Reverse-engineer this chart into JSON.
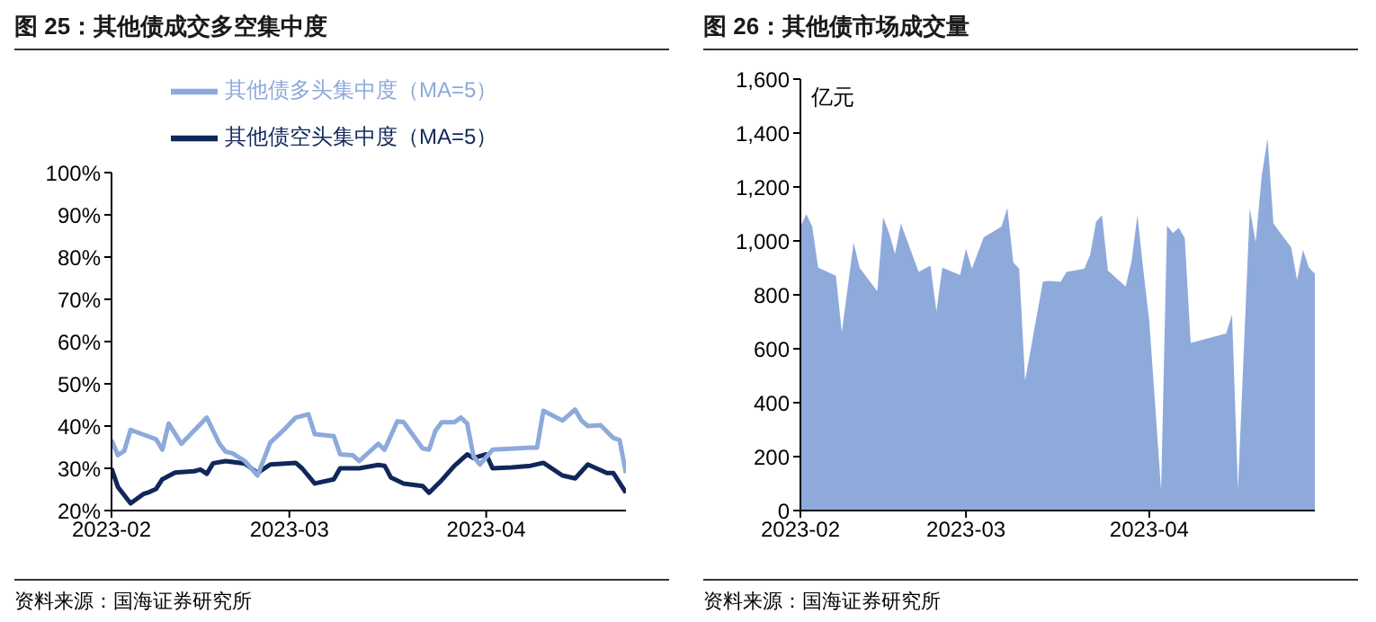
{
  "chart_data": [
    {
      "type": "line",
      "title": "图 25：其他债成交多空集中度",
      "annotations": [
        "资料来源：国海证券研究所"
      ],
      "legend": "top",
      "grid": false,
      "xlim": [
        "2023-02-01",
        "2023-04-23"
      ],
      "xticks": [
        "2023-02",
        "2023-03",
        "2023-04"
      ],
      "ylim": [
        20,
        100
      ],
      "yticks": [
        {
          "value": 20,
          "label": "20%"
        },
        {
          "value": 30,
          "label": "30%"
        },
        {
          "value": 40,
          "label": "40%"
        },
        {
          "value": 50,
          "label": "50%"
        },
        {
          "value": 60,
          "label": "60%"
        },
        {
          "value": 70,
          "label": "70%"
        },
        {
          "value": 80,
          "label": "80%"
        },
        {
          "value": 90,
          "label": "90%"
        },
        {
          "value": 100,
          "label": "100%"
        }
      ],
      "series": [
        {
          "name": "其他债空头集中度（MA=5）",
          "color": "#10275b",
          "x": [
            "2023-02-01",
            "2023-02-02",
            "2023-02-04",
            "2023-02-06",
            "2023-02-07",
            "2023-02-08",
            "2023-02-09",
            "2023-02-11",
            "2023-02-14",
            "2023-02-15",
            "2023-02-16",
            "2023-02-17",
            "2023-02-19",
            "2023-02-22",
            "2023-02-24",
            "2023-02-26",
            "2023-03-02",
            "2023-03-03",
            "2023-03-05",
            "2023-03-08",
            "2023-03-09",
            "2023-03-12",
            "2023-03-15",
            "2023-03-16",
            "2023-03-17",
            "2023-03-19",
            "2023-03-22",
            "2023-03-23",
            "2023-03-25",
            "2023-03-27",
            "2023-03-29",
            "2023-03-30",
            "2023-04-01",
            "2023-04-02",
            "2023-04-05",
            "2023-04-08",
            "2023-04-10",
            "2023-04-13",
            "2023-04-15",
            "2023-04-17",
            "2023-04-20",
            "2023-04-21",
            "2023-04-23"
          ],
          "values": [
            30.0,
            25.6,
            21.7,
            23.9,
            24.4,
            25.1,
            27.4,
            29.0,
            29.3,
            29.7,
            28.7,
            31.2,
            31.7,
            31.1,
            28.9,
            30.9,
            31.3,
            30.0,
            26.4,
            27.4,
            30.0,
            30.0,
            30.8,
            30.6,
            27.8,
            26.4,
            25.8,
            24.2,
            27.2,
            30.6,
            33.3,
            32.4,
            33.3,
            30.0,
            30.2,
            30.6,
            31.3,
            28.3,
            27.6,
            30.9,
            28.9,
            28.9,
            24.2
          ]
        },
        {
          "name": "其他债多头集中度（MA=5）",
          "color": "#8ea9db",
          "x": [
            "2023-02-01",
            "2023-02-02",
            "2023-02-03",
            "2023-02-04",
            "2023-02-08",
            "2023-02-09",
            "2023-02-10",
            "2023-02-12",
            "2023-02-16",
            "2023-02-18",
            "2023-02-19",
            "2023-02-20",
            "2023-02-22",
            "2023-02-24",
            "2023-02-26",
            "2023-02-28",
            "2023-03-02",
            "2023-03-04",
            "2023-03-05",
            "2023-03-08",
            "2023-03-09",
            "2023-03-11",
            "2023-03-12",
            "2023-03-15",
            "2023-03-16",
            "2023-03-18",
            "2023-03-19",
            "2023-03-22",
            "2023-03-23",
            "2023-03-24",
            "2023-03-25",
            "2023-03-27",
            "2023-03-28",
            "2023-03-29",
            "2023-03-30",
            "2023-03-31",
            "2023-04-02",
            "2023-04-08",
            "2023-04-09",
            "2023-04-10",
            "2023-04-13",
            "2023-04-15",
            "2023-04-16",
            "2023-04-17",
            "2023-04-19",
            "2023-04-21",
            "2023-04-22",
            "2023-04-23"
          ],
          "values": [
            36.7,
            33.1,
            34.1,
            39.1,
            36.9,
            34.4,
            40.6,
            35.8,
            42.0,
            35.8,
            33.9,
            33.6,
            31.7,
            28.3,
            36.1,
            38.9,
            42.0,
            42.8,
            38.1,
            37.6,
            33.3,
            33.1,
            31.7,
            35.8,
            34.4,
            41.1,
            40.9,
            34.7,
            34.4,
            38.9,
            40.9,
            40.9,
            42.0,
            40.6,
            32.8,
            30.9,
            34.4,
            34.9,
            34.9,
            43.6,
            41.3,
            43.9,
            41.3,
            40.0,
            40.2,
            37.2,
            36.7,
            28.9
          ]
        }
      ]
    },
    {
      "type": "area",
      "title": "图 26：其他债市场成交量",
      "annotations": [
        "资料来源：国海证券研究所"
      ],
      "ylabel": "亿元",
      "grid": false,
      "xlim": [
        "2023-02-01",
        "2023-04-29"
      ],
      "xticks": [
        "2023-02",
        "2023-03",
        "2023-04"
      ],
      "ylim": [
        0,
        1600
      ],
      "yticks": [
        0,
        200,
        400,
        600,
        800,
        {
          "value": 1000,
          "label": "1,000"
        },
        {
          "value": 1200,
          "label": "1,200"
        },
        {
          "value": 1400,
          "label": "1,400"
        },
        {
          "value": 1600,
          "label": "1,600"
        }
      ],
      "series": [
        {
          "color": "#8eaadb",
          "x": [
            "2023-02-01",
            "2023-02-02",
            "2023-02-03",
            "2023-02-04",
            "2023-02-07",
            "2023-02-08",
            "2023-02-10",
            "2023-02-11",
            "2023-02-14",
            "2023-02-15",
            "2023-02-16",
            "2023-02-17",
            "2023-02-18",
            "2023-02-21",
            "2023-02-23",
            "2023-02-24",
            "2023-02-25",
            "2023-02-28",
            "2023-03-01",
            "2023-03-02",
            "2023-03-04",
            "2023-03-07",
            "2023-03-08",
            "2023-03-09",
            "2023-03-10",
            "2023-03-11",
            "2023-03-14",
            "2023-03-15",
            "2023-03-17",
            "2023-03-18",
            "2023-03-21",
            "2023-03-22",
            "2023-03-23",
            "2023-03-24",
            "2023-03-25",
            "2023-03-28",
            "2023-03-29",
            "2023-03-30",
            "2023-03-31",
            "2023-04-01",
            "2023-04-03",
            "2023-04-04",
            "2023-04-05",
            "2023-04-06",
            "2023-04-07",
            "2023-04-08",
            "2023-04-14",
            "2023-04-15",
            "2023-04-16",
            "2023-04-18",
            "2023-04-19",
            "2023-04-20",
            "2023-04-21",
            "2023-04-22",
            "2023-04-25",
            "2023-04-26",
            "2023-04-27",
            "2023-04-28",
            "2023-04-29"
          ],
          "values": [
            1053,
            1099,
            1053,
            901,
            871,
            661,
            994,
            901,
            813,
            1088,
            1029,
            952,
            1064,
            885,
            908,
            738,
            901,
            873,
            971,
            897,
            1013,
            1053,
            1122,
            920,
            897,
            482,
            848,
            852,
            848,
            885,
            897,
            948,
            1071,
            1095,
            890,
            831,
            925,
            1095,
            890,
            703,
            75,
            1057,
            1029,
            1048,
            1011,
            622,
            657,
            727,
            79,
            1122,
            994,
            1239,
            1379,
            1064,
            976,
            855,
            967,
            901,
            878
          ]
        }
      ]
    }
  ]
}
